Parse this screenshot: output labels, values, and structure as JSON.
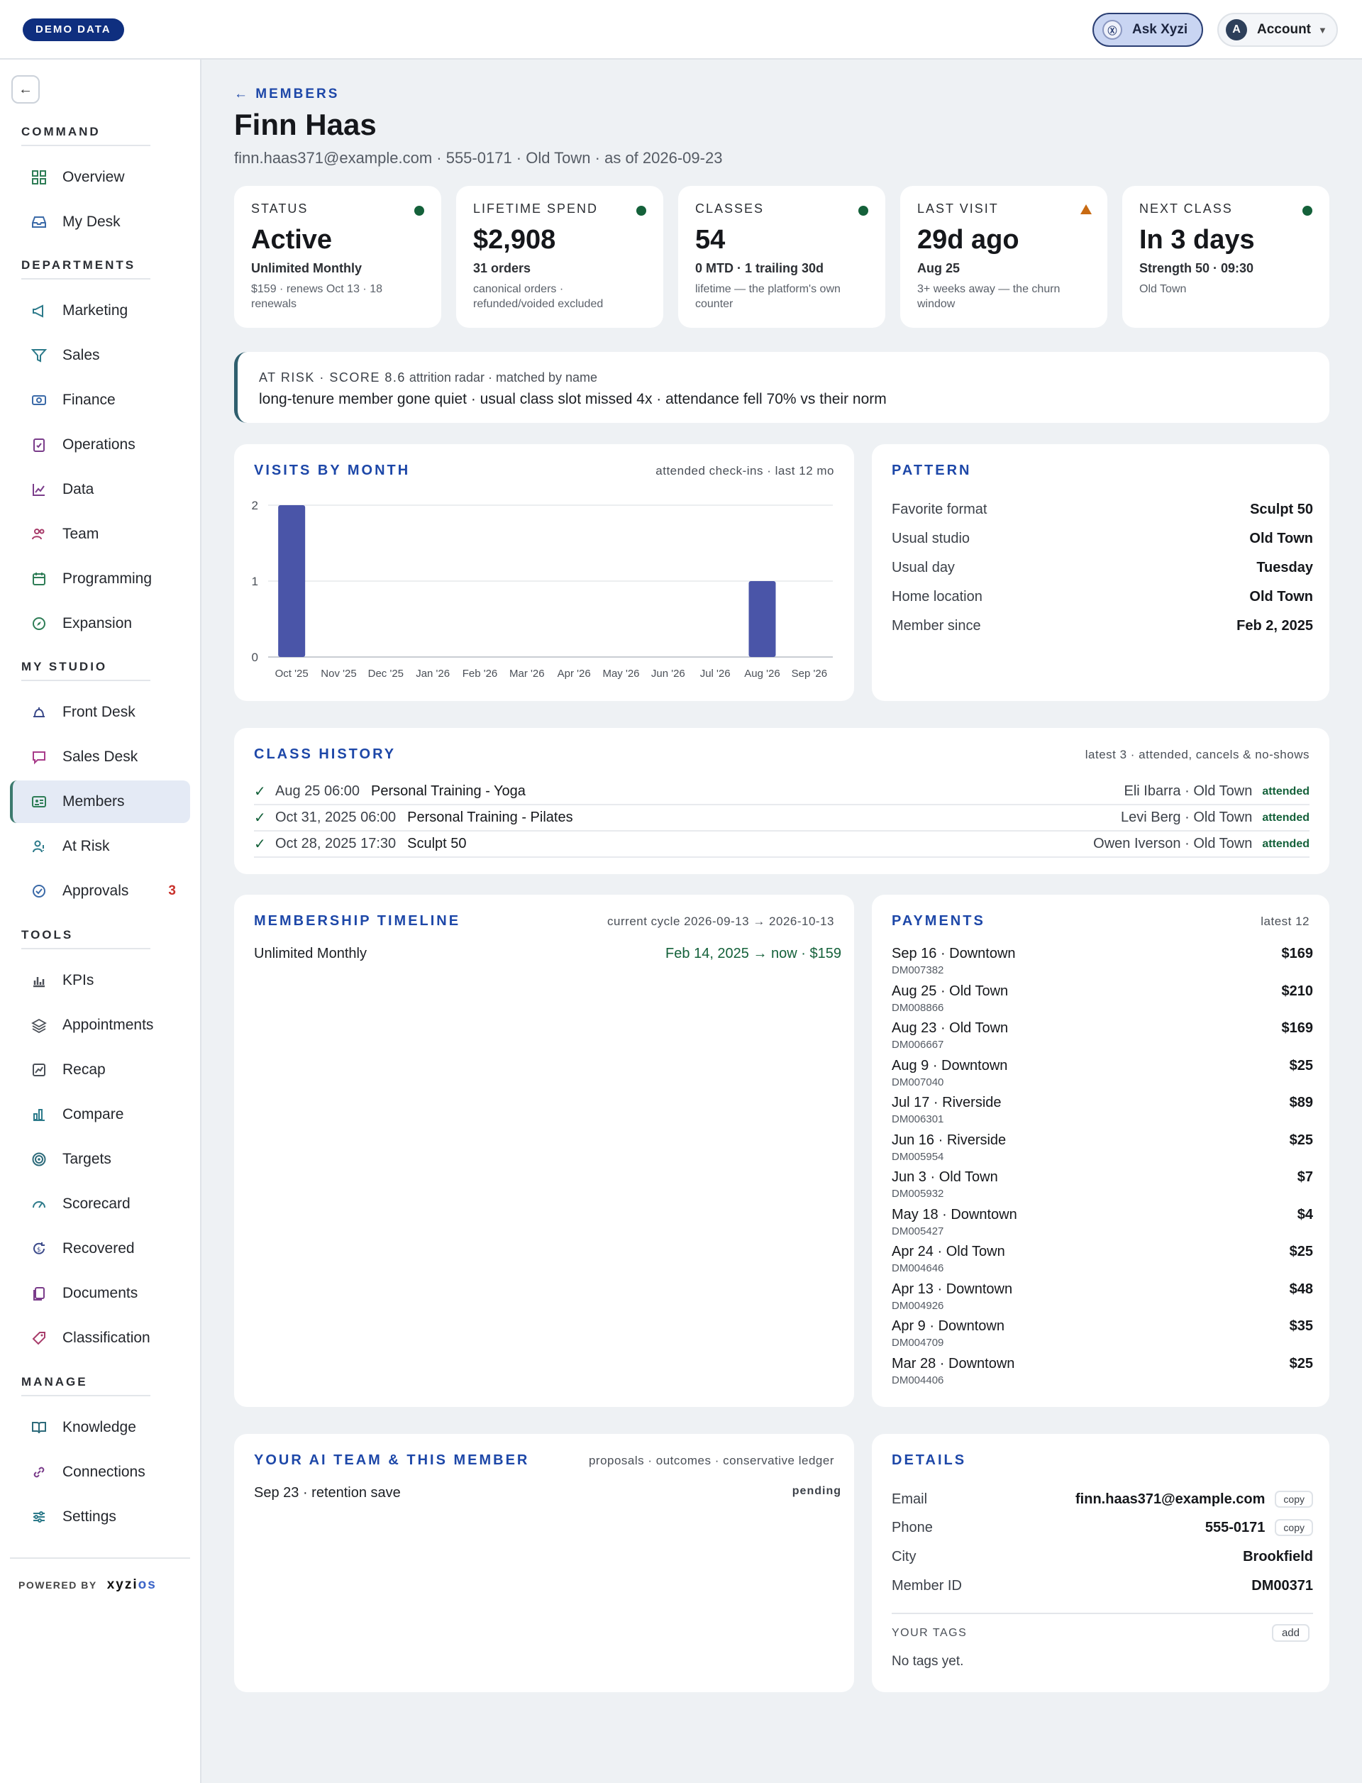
{
  "topbar": {
    "demo_badge": "DEMO DATA",
    "ask_label": "Ask Xyzi",
    "ask_logo": "Ⓧ",
    "account_label": "Account",
    "account_avatar": "A"
  },
  "sidebar": {
    "sections": {
      "command": "COMMAND",
      "departments": "DEPARTMENTS",
      "my_studio": "MY STUDIO",
      "tools": "TOOLS",
      "manage": "MANAGE"
    },
    "items": {
      "overview": "Overview",
      "my_desk": "My Desk",
      "marketing": "Marketing",
      "sales": "Sales",
      "finance": "Finance",
      "operations": "Operations",
      "data": "Data",
      "team": "Team",
      "programming": "Programming",
      "expansion": "Expansion",
      "front_desk": "Front Desk",
      "sales_desk": "Sales Desk",
      "members": "Members",
      "at_risk": "At Risk",
      "approvals": "Approvals",
      "kpis": "KPIs",
      "appointments": "Appointments",
      "recap": "Recap",
      "compare": "Compare",
      "targets": "Targets",
      "scorecard": "Scorecard",
      "recovered": "Recovered",
      "documents": "Documents",
      "classification": "Classification",
      "knowledge": "Knowledge",
      "connections": "Connections",
      "settings": "Settings"
    },
    "approvals_count": "3",
    "powered_by": "POWERED BY",
    "brand_a": "xyzi",
    "brand_b": "os",
    "accent_color": "#3c7a6e"
  },
  "page": {
    "breadcrumb": "← MEMBERS",
    "title": "Finn Haas",
    "subtitle": "finn.haas371@example.com · 555-0171 · Old Town · as of 2026-09-23"
  },
  "kpis": {
    "status": {
      "label": "STATUS",
      "value": "Active",
      "sub1": "Unlimited Monthly",
      "sub2": "$159 · renews Oct 13 · 18 renewals"
    },
    "spend": {
      "label": "LIFETIME SPEND",
      "value": "$2,908",
      "sub1": "31 orders",
      "sub2": "canonical orders · refunded/voided excluded"
    },
    "classes": {
      "label": "CLASSES",
      "value": "54",
      "sub1": "0 MTD · 1 trailing 30d",
      "sub2": "lifetime — the platform's own counter"
    },
    "last_visit": {
      "label": "LAST VISIT",
      "value": "29d ago",
      "sub1": "Aug 25",
      "sub2": "3+ weeks away — the churn window"
    },
    "next_class": {
      "label": "NEXT CLASS",
      "value": "In 3 days",
      "sub1": "Strength 50 · 09:30",
      "sub2": "Old Town"
    }
  },
  "risk": {
    "tag": "AT RISK · SCORE 8.6",
    "meta": "attrition radar · matched by name",
    "text": "long-tenure member gone quiet · usual class slot missed 4x · attendance fell 70% vs their norm"
  },
  "visits": {
    "title": "VISITS BY MONTH",
    "meta": "attended check-ins · last 12 mo"
  },
  "chart_data": {
    "type": "bar",
    "categories": [
      "Oct '25",
      "Nov '25",
      "Dec '25",
      "Jan '26",
      "Feb '26",
      "Mar '26",
      "Apr '26",
      "May '26",
      "Jun '26",
      "Jul '26",
      "Aug '26",
      "Sep '26"
    ],
    "values": [
      2,
      0,
      0,
      0,
      0,
      0,
      0,
      0,
      0,
      0,
      1,
      0
    ],
    "yticks": [
      0,
      1,
      2
    ],
    "ylim": [
      0,
      2
    ],
    "grid": true,
    "bar_color": "#4a55a8"
  },
  "pattern": {
    "title": "PATTERN",
    "rows": [
      {
        "k": "Favorite format",
        "v": "Sculpt 50"
      },
      {
        "k": "Usual studio",
        "v": "Old Town"
      },
      {
        "k": "Usual day",
        "v": "Tuesday"
      },
      {
        "k": "Home location",
        "v": "Old Town"
      },
      {
        "k": "Member since",
        "v": "Feb 2, 2025"
      }
    ]
  },
  "history": {
    "title": "CLASS HISTORY",
    "meta": "latest 3 · attended, cancels & no-shows",
    "rows": [
      {
        "when": "Aug 25 06:00",
        "what": "Personal Training - Yoga",
        "who": "Eli Ibarra · Old Town",
        "status": "attended"
      },
      {
        "when": "Oct 31, 2025 06:00",
        "what": "Personal Training - Pilates",
        "who": "Levi Berg · Old Town",
        "status": "attended"
      },
      {
        "when": "Oct 28, 2025 17:30",
        "what": "Sculpt 50",
        "who": "Owen Iverson · Old Town",
        "status": "attended"
      }
    ]
  },
  "timeline": {
    "title": "MEMBERSHIP TIMELINE",
    "meta": "current cycle 2026-09-13 → 2026-10-13",
    "plan": "Unlimited Monthly",
    "range": "Feb 14, 2025 → now · $159"
  },
  "payments": {
    "title": "PAYMENTS",
    "meta": "latest 12",
    "rows": [
      {
        "a": "Sep 16 · Downtown",
        "id": "DM007382",
        "amt": "$169"
      },
      {
        "a": "Aug 25 · Old Town",
        "id": "DM008866",
        "amt": "$210"
      },
      {
        "a": "Aug 23 · Old Town",
        "id": "DM006667",
        "amt": "$169"
      },
      {
        "a": "Aug 9 · Downtown",
        "id": "DM007040",
        "amt": "$25"
      },
      {
        "a": "Jul 17 · Riverside",
        "id": "DM006301",
        "amt": "$89"
      },
      {
        "a": "Jun 16 · Riverside",
        "id": "DM005954",
        "amt": "$25"
      },
      {
        "a": "Jun 3 · Old Town",
        "id": "DM005932",
        "amt": "$7"
      },
      {
        "a": "May 18 · Downtown",
        "id": "DM005427",
        "amt": "$4"
      },
      {
        "a": "Apr 24 · Old Town",
        "id": "DM004646",
        "amt": "$25"
      },
      {
        "a": "Apr 13 · Downtown",
        "id": "DM004926",
        "amt": "$48"
      },
      {
        "a": "Apr 9 · Downtown",
        "id": "DM004709",
        "amt": "$35"
      },
      {
        "a": "Mar 28 · Downtown",
        "id": "DM004406",
        "amt": "$25"
      }
    ]
  },
  "ai_team": {
    "title": "YOUR AI TEAM & THIS MEMBER",
    "meta": "proposals · outcomes · conservative ledger",
    "item": "Sep 23 · retention save",
    "status": "pending"
  },
  "details": {
    "title": "DETAILS",
    "email_k": "Email",
    "email_v": "finn.haas371@example.com",
    "phone_k": "Phone",
    "phone_v": "555-0171",
    "city_k": "City",
    "city_v": "Brookfield",
    "id_k": "Member ID",
    "id_v": "DM00371",
    "copy": "copy",
    "tags_label": "YOUR TAGS",
    "add": "add",
    "no_tags": "No tags yet."
  }
}
